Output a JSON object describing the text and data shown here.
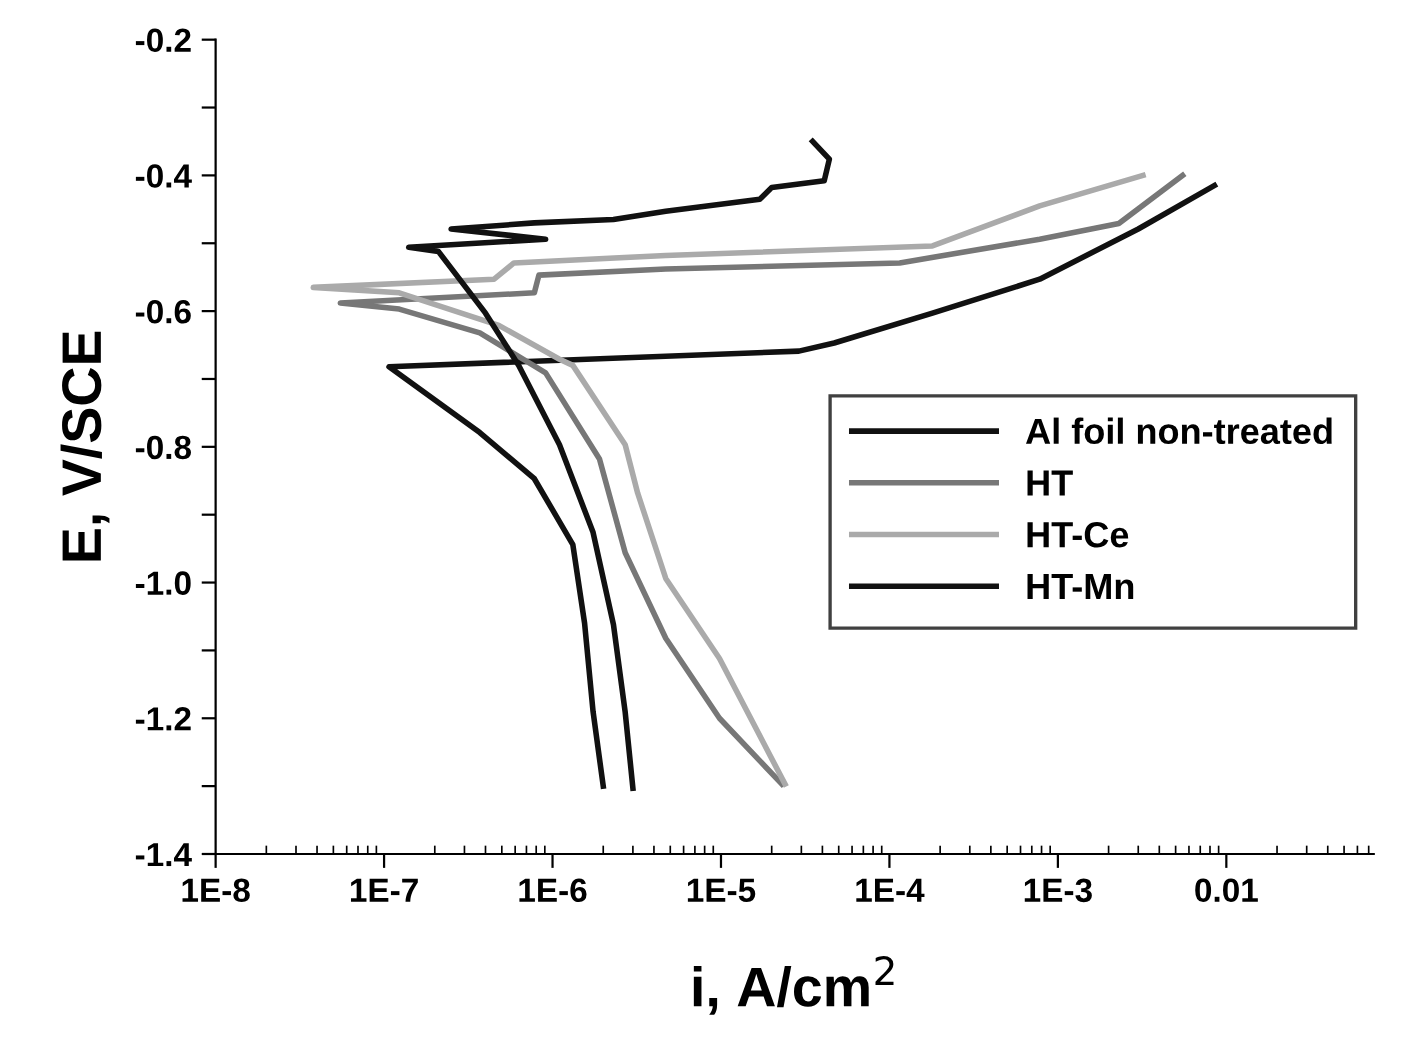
{
  "chart_data": {
    "type": "line",
    "xlabel": "i, A/cm$^{2}$",
    "ylabel": "E, V/SCE",
    "log": "x",
    "grid": false,
    "legend": "right",
    "marker": "none",
    "line_style": "solid",
    "xlim": [
      1e-08,
      0.075
    ],
    "ylim": [
      -1.4,
      -0.2
    ],
    "xticks": [
      {
        "value": 1e-08,
        "label": "1E-8"
      },
      {
        "value": 1e-07,
        "label": "1E-7"
      },
      {
        "value": 1e-06,
        "label": "1E-6"
      },
      {
        "value": 1e-05,
        "label": "1E-5"
      },
      {
        "value": 0.0001,
        "label": "1E-4"
      },
      {
        "value": 0.001,
        "label": "1E-3"
      },
      {
        "value": 0.01,
        "label": "0.01"
      }
    ],
    "yticks": [
      -1.4,
      {
        "value": -1.3,
        "label": null
      },
      -1.2,
      {
        "value": -1.1,
        "label": null
      },
      {
        "value": -1.0,
        "label": "-1.0"
      },
      {
        "value": -0.9,
        "label": null
      },
      -0.8,
      {
        "value": -0.7,
        "label": null
      },
      -0.6,
      {
        "value": -0.5,
        "label": null
      },
      -0.4,
      {
        "value": -0.3,
        "label": null
      },
      -0.2
    ],
    "series": [
      {
        "name": "Al foil non-treated",
        "color": "#111111",
        "x": [
          2e-06,
          1.74e-06,
          1.55e-06,
          1.32e-06,
          7.8e-07,
          3.7e-07,
          1.07e-07,
          2.9e-05,
          4.7e-05,
          0.00018,
          0.00078,
          0.003,
          0.0085
        ],
        "values": [
          -1.3,
          -1.19,
          -1.06,
          -0.944,
          -0.847,
          -0.779,
          -0.682,
          -0.659,
          -0.647,
          -0.603,
          -0.553,
          -0.479,
          -0.415
        ]
      },
      {
        "name": "HT",
        "color": "#777777",
        "x": [
          2.3e-05,
          9.8e-06,
          4.7e-06,
          2.7e-06,
          1.9e-06,
          9.1e-07,
          3.7e-07,
          1.23e-07,
          5.5e-08,
          7.8e-07,
          8.3e-07,
          4.7e-06,
          0.000115,
          0.00078,
          0.0023,
          0.0055
        ],
        "values": [
          -1.297,
          -1.2,
          -1.082,
          -0.956,
          -0.818,
          -0.691,
          -0.632,
          -0.597,
          -0.588,
          -0.573,
          -0.547,
          -0.538,
          -0.529,
          -0.494,
          -0.471,
          -0.4
        ]
      },
      {
        "name": "HT-Ce",
        "color": "#aaaaaa",
        "x": [
          2.4e-05,
          9.8e-06,
          4.7e-06,
          3.2e-06,
          2.7e-06,
          1.32e-06,
          1.1e-06,
          4.8e-07,
          1.23e-07,
          3.8e-08,
          4.5e-07,
          5.9e-07,
          4.7e-06,
          0.00018,
          0.00078,
          0.0032
        ],
        "values": [
          -1.297,
          -1.112,
          -0.994,
          -0.868,
          -0.797,
          -0.68,
          -0.671,
          -0.621,
          -0.573,
          -0.565,
          -0.553,
          -0.529,
          -0.518,
          -0.504,
          -0.445,
          -0.4
        ]
      },
      {
        "name": "HT-Mn",
        "color": "#111111",
        "x": [
          3e-06,
          2.7e-06,
          2.3e-06,
          1.74e-06,
          1.1e-06,
          6.3e-07,
          4e-07,
          2.1e-07,
          1.4e-07,
          9.1e-07,
          2.5e-07,
          7.8e-07,
          2.3e-06,
          4.7e-06,
          1.7e-05,
          2e-05,
          4.1e-05,
          4.4e-05,
          3.5e-05
        ],
        "values": [
          -1.303,
          -1.191,
          -1.062,
          -0.926,
          -0.797,
          -0.68,
          -0.603,
          -0.512,
          -0.506,
          -0.494,
          -0.479,
          -0.47,
          -0.465,
          -0.453,
          -0.435,
          -0.418,
          -0.408,
          -0.376,
          -0.35
        ]
      }
    ]
  }
}
